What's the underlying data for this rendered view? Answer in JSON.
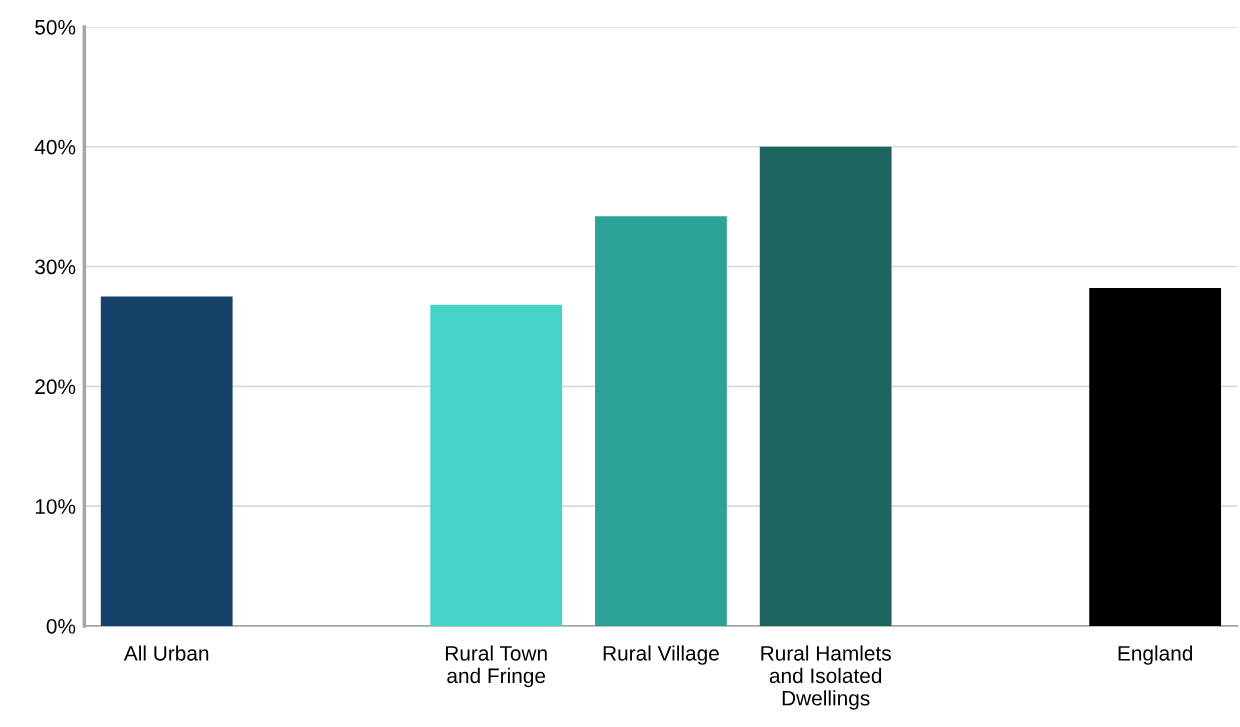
{
  "chart_data": {
    "type": "bar",
    "categories": [
      "All Urban",
      null,
      "Rural Town\nand Fringe",
      "Rural Village",
      "Rural Hamlets\nand Isolated\nDwellings",
      null,
      "England"
    ],
    "values": [
      27.5,
      null,
      26.8,
      34.2,
      40.0,
      null,
      28.2
    ],
    "colors": [
      "#154168",
      "#154168",
      "#48d3c8",
      "#2aa396",
      "#1c665f",
      "#000000",
      "#000000"
    ],
    "ylim": [
      0,
      50
    ],
    "yticks": [
      {
        "value": 0,
        "label": "0%"
      },
      {
        "value": 10,
        "label": "10%"
      },
      {
        "value": 20,
        "label": "20%"
      },
      {
        "value": 30,
        "label": "30%"
      },
      {
        "value": 40,
        "label": "40%"
      },
      {
        "value": 50,
        "label": "50%"
      }
    ],
    "grid": "y",
    "legend": false
  }
}
